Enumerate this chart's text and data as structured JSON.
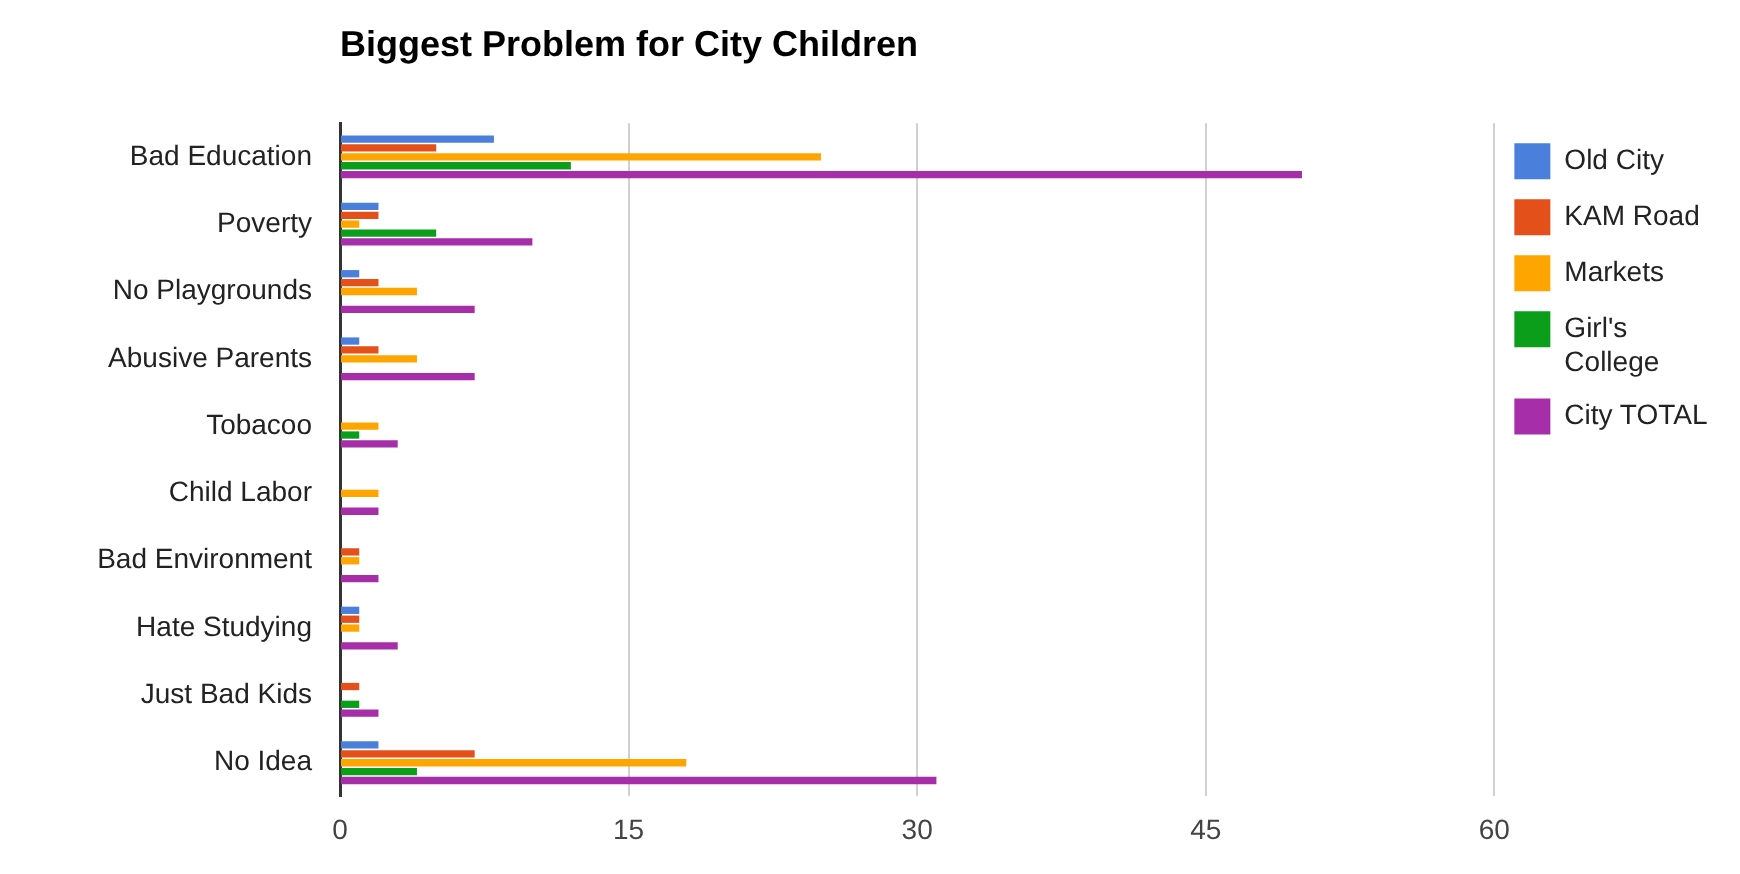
{
  "chart_data": {
    "type": "bar",
    "orientation": "horizontal",
    "title": "Biggest Problem for City Children",
    "categories": [
      "Bad Education",
      "Poverty",
      "No Playgrounds",
      "Abusive Parents",
      "Tobacoo",
      "Child Labor",
      "Bad Environment",
      "Hate Studying",
      "Just Bad Kids",
      "No Idea"
    ],
    "series": [
      {
        "name": "Old City",
        "color": "#4a7fdb",
        "values": [
          8,
          2,
          1,
          1,
          0,
          0,
          0,
          1,
          0,
          2
        ]
      },
      {
        "name": "KAM Road",
        "color": "#e3501a",
        "values": [
          5,
          2,
          2,
          2,
          0,
          0,
          1,
          1,
          1,
          7
        ]
      },
      {
        "name": "Markets",
        "color": "#ffa500",
        "values": [
          25,
          1,
          4,
          4,
          2,
          2,
          1,
          1,
          0,
          18
        ]
      },
      {
        "name": "Girl's College",
        "color": "#0a9e1b",
        "values": [
          12,
          5,
          0,
          0,
          1,
          0,
          0,
          0,
          1,
          4
        ]
      },
      {
        "name": "City TOTAL",
        "color": "#a62ea8",
        "values": [
          50,
          10,
          7,
          7,
          3,
          2,
          2,
          3,
          2,
          31
        ]
      }
    ],
    "xlim": [
      0,
      60
    ],
    "xticks": [
      0,
      15,
      30,
      45,
      60
    ],
    "grid": "x",
    "legend": "right"
  }
}
